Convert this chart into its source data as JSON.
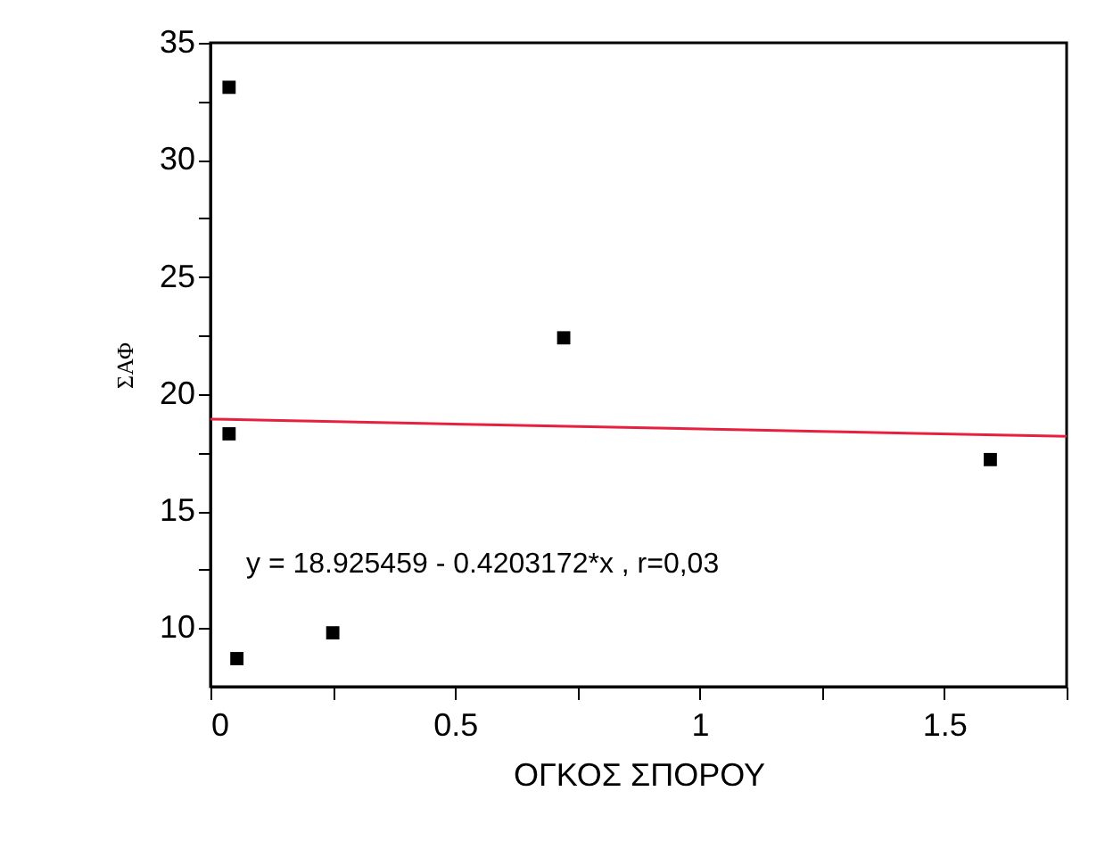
{
  "chart_data": {
    "type": "scatter",
    "xlabel": "ΟΓΚΟΣ ΣΠΟΡΟΥ",
    "ylabel": "ΣΑΦ",
    "x": [
      0.038,
      0.722,
      0.038,
      0.054,
      0.25,
      1.594
    ],
    "series": [
      {
        "type": "scatter",
        "color": "#000000",
        "marker": "square",
        "values": [
          33.1,
          22.4,
          18.3,
          8.7,
          9.8,
          17.2
        ]
      },
      {
        "type": "line",
        "color": "#e8203f",
        "x": [
          0,
          1.75
        ],
        "values": [
          18.93,
          18.19
        ]
      }
    ],
    "xlim": [
      0,
      1.75
    ],
    "ylim": [
      7.5,
      35
    ],
    "xticks": [
      0,
      {
        "value": 0.25,
        "label": null
      },
      0.5,
      {
        "value": 0.75,
        "label": null
      },
      1,
      {
        "value": 1.25,
        "label": null
      },
      1.5,
      {
        "value": 1.75,
        "label": null
      }
    ],
    "yticks": [
      10,
      {
        "value": 12.5,
        "label": null
      },
      15,
      {
        "value": 17.5,
        "label": null
      },
      20,
      {
        "value": 22.5,
        "label": null
      },
      25,
      {
        "value": 27.5,
        "label": null
      },
      30,
      {
        "value": 32.5,
        "label": null
      },
      35
    ],
    "grid": false,
    "annotations": [
      "y = 18.925459 - 0.4203172*x , r=0,03"
    ]
  }
}
